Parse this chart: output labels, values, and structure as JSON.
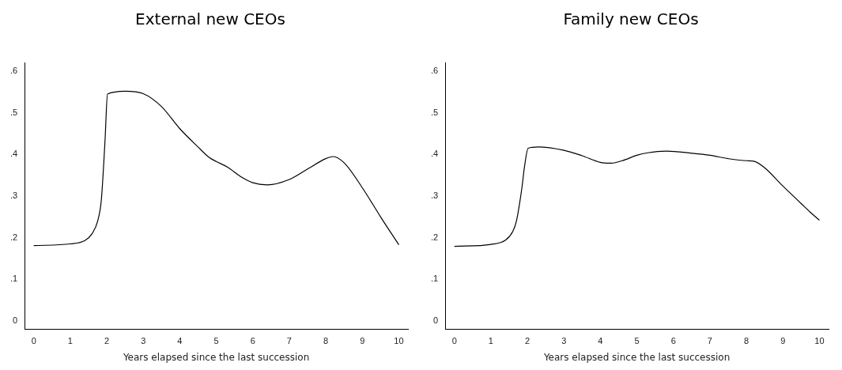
{
  "chart_data": [
    {
      "type": "line",
      "title": "External new CEOs",
      "xlabel": "Years elapsed since the last succession",
      "grid": false,
      "legend": false,
      "marker": "none",
      "line_style": "solid",
      "xlim": [
        -0.25,
        10.25
      ],
      "xticks": [
        0,
        1,
        2,
        3,
        4,
        5,
        6,
        7,
        8,
        9,
        10
      ],
      "ylim": [
        -0.02,
        0.62
      ],
      "yticks": [
        {
          "value": 0,
          "label": "0"
        },
        {
          "value": 0.1,
          "label": ".1"
        },
        {
          "value": 0.2,
          "label": ".2"
        },
        {
          "value": 0.3,
          "label": ".3"
        },
        {
          "value": 0.4,
          "label": ".4"
        },
        {
          "value": 0.5,
          "label": ".5"
        },
        {
          "value": 0.6,
          "label": ".6"
        }
      ],
      "series": [
        {
          "color": "#000000",
          "x": [
            0,
            1,
            1.4,
            1.6,
            1.75,
            1.85,
            1.95,
            2.02,
            2.5,
            3,
            3.5,
            4,
            4.5,
            4.8,
            5,
            5.3,
            5.7,
            6,
            6.4,
            7,
            7.5,
            8,
            8.2,
            8.5,
            9,
            9.5,
            10
          ],
          "values": [
            0.181,
            0.185,
            0.193,
            0.21,
            0.24,
            0.29,
            0.43,
            0.545,
            0.552,
            0.546,
            0.515,
            0.462,
            0.418,
            0.393,
            0.383,
            0.37,
            0.345,
            0.332,
            0.327,
            0.34,
            0.365,
            0.39,
            0.395,
            0.38,
            0.32,
            0.25,
            0.183
          ]
        }
      ]
    },
    {
      "type": "line",
      "title": "Family new CEOs",
      "xlabel": "Years elapsed since the last succession",
      "grid": false,
      "legend": false,
      "marker": "none",
      "line_style": "solid",
      "xlim": [
        -0.25,
        10.25
      ],
      "xticks": [
        0,
        1,
        2,
        3,
        4,
        5,
        6,
        7,
        8,
        9,
        10
      ],
      "ylim": [
        -0.02,
        0.62
      ],
      "yticks": [
        {
          "value": 0,
          "label": "0"
        },
        {
          "value": 0.1,
          "label": ".1"
        },
        {
          "value": 0.2,
          "label": ".2"
        },
        {
          "value": 0.3,
          "label": ".3"
        },
        {
          "value": 0.4,
          "label": ".4"
        },
        {
          "value": 0.5,
          "label": ".5"
        },
        {
          "value": 0.6,
          "label": ".6"
        }
      ],
      "series": [
        {
          "color": "#000000",
          "x": [
            0,
            1,
            1.4,
            1.6,
            1.7,
            1.85,
            1.92,
            2.02,
            2.3,
            3,
            3.5,
            4,
            4.3,
            4.6,
            5,
            5.3,
            5.8,
            6.5,
            7,
            7.5,
            8,
            8.2,
            8.5,
            9,
            9.5,
            9.75,
            10
          ],
          "values": [
            0.179,
            0.184,
            0.194,
            0.215,
            0.24,
            0.32,
            0.37,
            0.415,
            0.418,
            0.41,
            0.397,
            0.381,
            0.379,
            0.385,
            0.398,
            0.404,
            0.408,
            0.403,
            0.398,
            0.39,
            0.385,
            0.384,
            0.368,
            0.324,
            0.282,
            0.261,
            0.242
          ]
        }
      ]
    }
  ]
}
